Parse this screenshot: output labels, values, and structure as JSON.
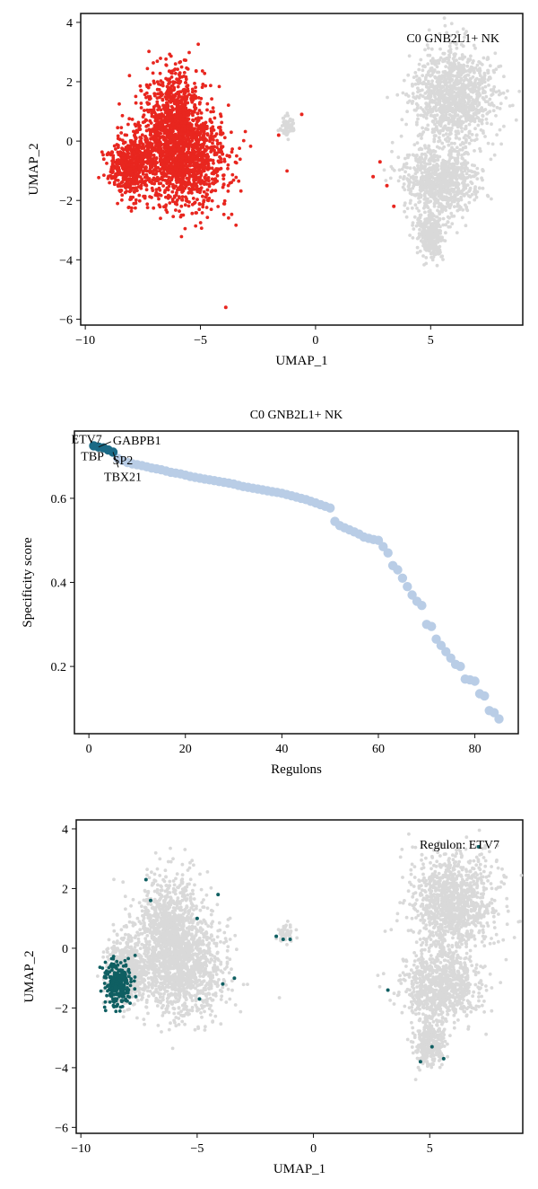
{
  "chart_data": [
    {
      "type": "scatter",
      "kind": "umap",
      "annotation": "C0 GNB2L1+ NK",
      "xlabel": "UMAP_1",
      "ylabel": "UMAP_2",
      "xlim": [
        -10.2,
        9.0
      ],
      "ylim": [
        -6.2,
        4.3
      ],
      "xticks": [
        -10,
        -5,
        0,
        5
      ],
      "yticks": [
        -6,
        -4,
        -2,
        0,
        2,
        4
      ],
      "grid": false,
      "highlight_color": "#e8261f",
      "background_color": "#d9d9d9",
      "clusters": [
        {
          "center": [
            -6.2,
            0.6
          ],
          "spread": [
            1.1,
            1.5
          ],
          "highlighted": true
        },
        {
          "center": [
            -5.6,
            -0.7
          ],
          "spread": [
            1.5,
            1.3
          ],
          "highlighted": true
        },
        {
          "center": [
            -8.0,
            -0.8
          ],
          "spread": [
            0.7,
            0.9
          ],
          "highlighted": true
        },
        {
          "center": [
            -1.2,
            0.5
          ],
          "spread": [
            0.25,
            0.22
          ],
          "highlighted": false
        },
        {
          "center": [
            6.0,
            1.5
          ],
          "spread": [
            1.4,
            1.3
          ],
          "highlighted": false
        },
        {
          "center": [
            5.5,
            -1.3
          ],
          "spread": [
            1.3,
            0.9
          ],
          "highlighted": false
        },
        {
          "center": [
            5.0,
            -3.2
          ],
          "spread": [
            0.5,
            0.6
          ],
          "highlighted": false
        }
      ],
      "highlighted_outliers": [
        [
          -1.6,
          0.2
        ],
        [
          -0.6,
          0.9
        ],
        [
          2.5,
          -1.2
        ],
        [
          2.8,
          -0.7
        ],
        [
          3.1,
          -1.5
        ],
        [
          3.4,
          -2.2
        ],
        [
          -3.9,
          -5.6
        ]
      ]
    },
    {
      "type": "scatter",
      "title": "C0 GNB2L1+ NK",
      "xlabel": "Regulons",
      "ylabel": "Specificity score",
      "xlim": [
        -3,
        89
      ],
      "ylim": [
        0.04,
        0.76
      ],
      "xticks": [
        0,
        20,
        40,
        60,
        80
      ],
      "yticks": [
        0.2,
        0.4,
        0.6
      ],
      "grid": false,
      "point_color": "#b9cde6",
      "top_color": "#1b6a86",
      "top_n": 5,
      "x": [
        1,
        2,
        3,
        4,
        5,
        6,
        7,
        8,
        9,
        10,
        11,
        12,
        13,
        14,
        15,
        16,
        17,
        18,
        19,
        20,
        21,
        22,
        23,
        24,
        25,
        26,
        27,
        28,
        29,
        30,
        31,
        32,
        33,
        34,
        35,
        36,
        37,
        38,
        39,
        40,
        41,
        42,
        43,
        44,
        45,
        46,
        47,
        48,
        49,
        50,
        51,
        52,
        53,
        54,
        55,
        56,
        57,
        58,
        59,
        60,
        61,
        62,
        63,
        64,
        65,
        66,
        67,
        68,
        69,
        70,
        71,
        72,
        73,
        74,
        75,
        76,
        77,
        78,
        79,
        80,
        81,
        82,
        83,
        84,
        85
      ],
      "y": [
        0.725,
        0.722,
        0.72,
        0.715,
        0.71,
        0.695,
        0.69,
        0.685,
        0.682,
        0.68,
        0.678,
        0.675,
        0.672,
        0.67,
        0.668,
        0.665,
        0.662,
        0.66,
        0.658,
        0.655,
        0.652,
        0.65,
        0.648,
        0.646,
        0.644,
        0.642,
        0.64,
        0.638,
        0.636,
        0.634,
        0.631,
        0.628,
        0.626,
        0.624,
        0.622,
        0.62,
        0.618,
        0.616,
        0.614,
        0.612,
        0.609,
        0.606,
        0.603,
        0.6,
        0.597,
        0.593,
        0.589,
        0.585,
        0.581,
        0.577,
        0.545,
        0.535,
        0.53,
        0.525,
        0.52,
        0.515,
        0.508,
        0.505,
        0.502,
        0.5,
        0.485,
        0.47,
        0.44,
        0.43,
        0.41,
        0.39,
        0.37,
        0.355,
        0.345,
        0.3,
        0.295,
        0.265,
        0.25,
        0.235,
        0.22,
        0.205,
        0.2,
        0.17,
        0.168,
        0.165,
        0.135,
        0.13,
        0.095,
        0.09,
        0.075
      ],
      "labels": [
        {
          "text": "ETV7",
          "index": 0
        },
        {
          "text": "GABPB1",
          "index": 1
        },
        {
          "text": "TBP",
          "index": 2
        },
        {
          "text": "SP2",
          "index": 3
        },
        {
          "text": "TBX21",
          "index": 4
        }
      ]
    },
    {
      "type": "scatter",
      "kind": "umap",
      "annotation": "Regulon: ETV7",
      "xlabel": "UMAP_1",
      "ylabel": "UMAP_2",
      "xlim": [
        -10.2,
        9.0
      ],
      "ylim": [
        -6.2,
        4.3
      ],
      "xticks": [
        -10,
        -5,
        0,
        5
      ],
      "yticks": [
        -6,
        -4,
        -2,
        0,
        2,
        4
      ],
      "grid": false,
      "highlight_color": "#0f5f62",
      "background_color": "#d9d9d9",
      "clusters": [
        {
          "center": [
            -6.2,
            0.6
          ],
          "spread": [
            1.1,
            1.5
          ],
          "highlighted": false
        },
        {
          "center": [
            -5.6,
            -0.7
          ],
          "spread": [
            1.5,
            1.3
          ],
          "highlighted": false
        },
        {
          "center": [
            -8.0,
            -0.8
          ],
          "spread": [
            0.7,
            0.9
          ],
          "highlighted": false
        },
        {
          "center": [
            -1.2,
            0.5
          ],
          "spread": [
            0.25,
            0.22
          ],
          "highlighted": false
        },
        {
          "center": [
            6.0,
            1.5
          ],
          "spread": [
            1.4,
            1.3
          ],
          "highlighted": false
        },
        {
          "center": [
            5.5,
            -1.3
          ],
          "spread": [
            1.3,
            0.9
          ],
          "highlighted": false
        },
        {
          "center": [
            5.0,
            -3.2
          ],
          "spread": [
            0.5,
            0.6
          ],
          "highlighted": false
        }
      ],
      "highlighted_region": {
        "center": [
          -8.4,
          -1.2
        ],
        "spread": [
          0.5,
          0.6
        ]
      },
      "highlighted_outliers": [
        [
          -7.2,
          2.3
        ],
        [
          -7.0,
          1.6
        ],
        [
          -5.0,
          1.0
        ],
        [
          -4.1,
          1.8
        ],
        [
          -3.9,
          -1.2
        ],
        [
          -3.4,
          -1.0
        ],
        [
          -1.3,
          0.3
        ],
        [
          -1.0,
          0.3
        ],
        [
          -1.6,
          0.4
        ],
        [
          4.6,
          -3.8
        ],
        [
          5.1,
          -3.3
        ],
        [
          5.6,
          -3.7
        ],
        [
          7.1,
          3.4
        ],
        [
          3.2,
          -1.4
        ],
        [
          -4.9,
          -1.7
        ]
      ]
    }
  ]
}
